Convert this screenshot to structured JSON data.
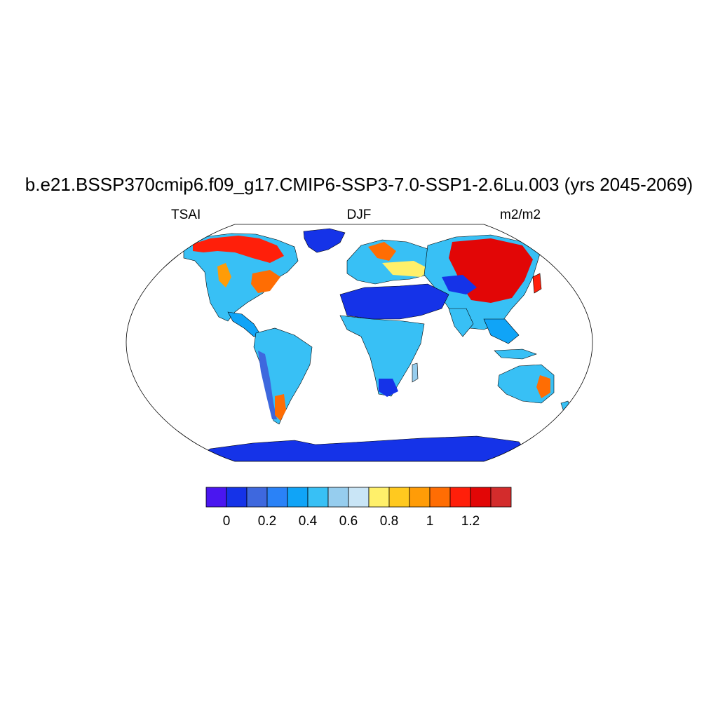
{
  "title": "b.e21.BSSP370cmip6.f09_g17.CMIP6-SSP3-7.0-SSP1-2.6Lu.003 (yrs 2045-2069)",
  "left_label": "TSAI",
  "center_label": "DJF",
  "right_label": "m2/m2",
  "colorbar": {
    "colors": [
      "#4a16f0",
      "#1533e8",
      "#3e68de",
      "#2a82f7",
      "#10a4f7",
      "#38c0f5",
      "#96cdee",
      "#c9e5f6",
      "#fff06a",
      "#ffc91f",
      "#ff9c07",
      "#ff6d03",
      "#ff1f0a",
      "#e20606",
      "#d32c2c"
    ],
    "tick_labels": [
      "0",
      "0.2",
      "0.4",
      "0.6",
      "0.8",
      "1",
      "1.2"
    ],
    "tick_index": [
      1,
      3,
      5,
      7,
      9,
      11,
      13
    ]
  },
  "map": {
    "projection": "robinson",
    "ocean_color": "#ffffff",
    "outline_color": "#000000"
  }
}
